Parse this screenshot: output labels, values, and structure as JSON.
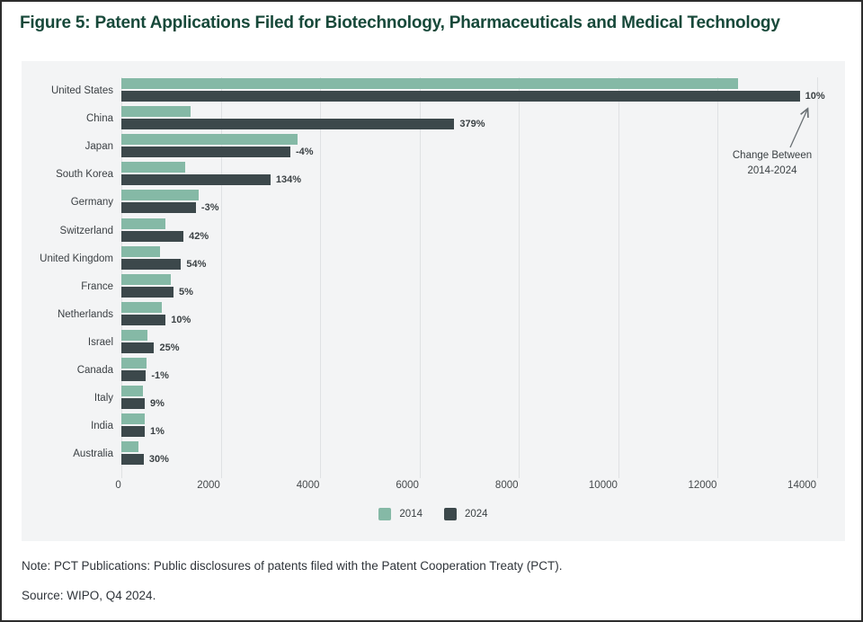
{
  "title": "Figure 5: Patent Applications Filed for Biotechnology, Pharmaceuticals and Medical Technology",
  "note": "Note: PCT Publications: Public disclosures of patents filed with the Patent Cooperation Treaty (PCT).",
  "source": "Source: WIPO, Q4 2024.",
  "colors": {
    "title": "#17493a",
    "bar_2014": "#85b9a6",
    "bar_2024": "#3c484b",
    "panel_bg": "#f3f4f5",
    "grid": "#dfe1e3",
    "text": "#3a3f43",
    "arrow": "#6a7074"
  },
  "chart_data": {
    "type": "bar",
    "orientation": "horizontal",
    "title": "Figure 5: Patent Applications Filed for Biotechnology, Pharmaceuticals and Medical Technology",
    "categories": [
      "United States",
      "China",
      "Japan",
      "South Korea",
      "Germany",
      "Switzerland",
      "United Kingdom",
      "France",
      "Netherlands",
      "Israel",
      "Canada",
      "Italy",
      "India",
      "Australia"
    ],
    "series": [
      {
        "name": "2014",
        "color": "#85b9a6",
        "values": [
          12400,
          1400,
          3550,
          1280,
          1550,
          880,
          780,
          1000,
          810,
          530,
          500,
          430,
          465,
          345
        ]
      },
      {
        "name": "2024",
        "color": "#3c484b",
        "values": [
          13650,
          6700,
          3400,
          3000,
          1500,
          1250,
          1200,
          1050,
          890,
          660,
          495,
          470,
          470,
          450
        ]
      }
    ],
    "change_labels": [
      "10%",
      "379%",
      "-4%",
      "134%",
      "-3%",
      "42%",
      "54%",
      "5%",
      "10%",
      "25%",
      "-1%",
      "9%",
      "1%",
      "30%"
    ],
    "xlim": [
      0,
      14000
    ],
    "xticks": [
      0,
      2000,
      4000,
      6000,
      8000,
      10000,
      12000,
      14000
    ],
    "grid": true,
    "legend_position": "bottom-center",
    "annotation": {
      "line1": "Change Between",
      "line2": "2014-2024",
      "target": "United States 2024 change label"
    }
  }
}
